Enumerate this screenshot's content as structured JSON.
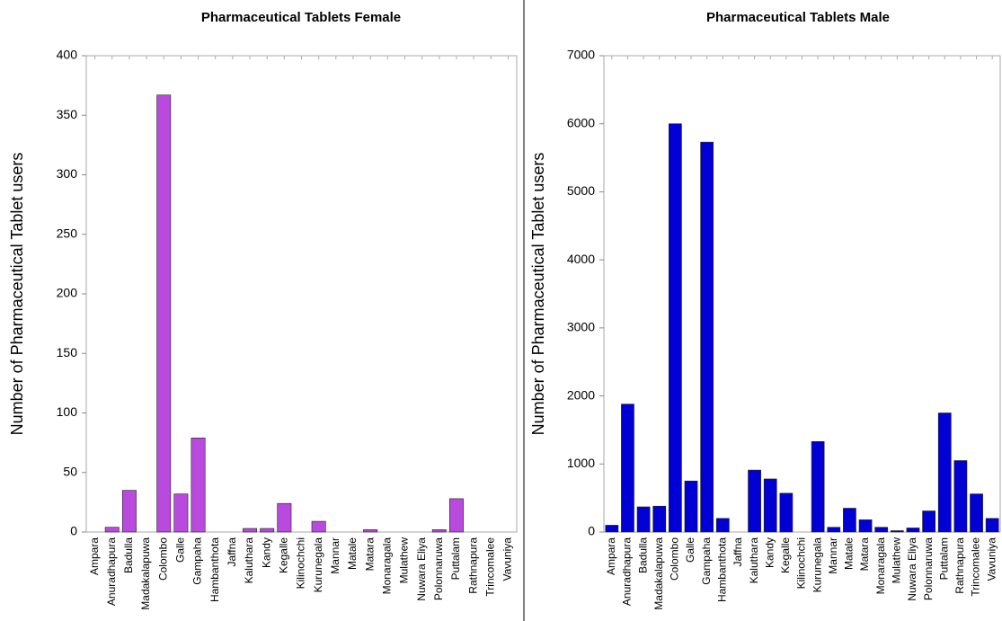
{
  "chart_data": [
    {
      "type": "bar",
      "title": "Pharmaceutical Tablets Female",
      "y_label": "Number of Pharmaceutical Tablet users",
      "categories": [
        "Ampara",
        "Anuradhapura",
        "Badulla",
        "Madakalapuwa",
        "Colombo",
        "Galle",
        "Gampaha",
        "Hambanthota",
        "Jaffna",
        "Kaluthara",
        "Kandy",
        "Kegalle",
        "Kilinochchi",
        "Kurunegala",
        "Mannar",
        "Matale",
        "Matara",
        "Monaragala",
        "Mulathew",
        "Nuwara Eliya",
        "Polonnaruwa",
        "Puttalam",
        "Rathnapura",
        "Trincomalee",
        "Vavuniya"
      ],
      "values": [
        0,
        4,
        35,
        0,
        367,
        32,
        79,
        0,
        0,
        3,
        3,
        24,
        0,
        9,
        0,
        0,
        2,
        0,
        0,
        0,
        2,
        28,
        0,
        0,
        0
      ],
      "color": "#b84ade",
      "ylim": [
        0,
        400
      ],
      "yticks": [
        0,
        50,
        100,
        150,
        200,
        250,
        300,
        350,
        400
      ]
    },
    {
      "type": "bar",
      "title": "Pharmaceutical Tablets Male",
      "y_label": "Number of Pharmaceutical Tablet users",
      "categories": [
        "Ampara",
        "Anuradhapura",
        "Badulla",
        "Madakalapuwa",
        "Colombo",
        "Galle",
        "Gampaha",
        "Hambanthota",
        "Jaffna",
        "Kaluthara",
        "Kandy",
        "Kegalle",
        "Kilinochchi",
        "Kurunegala",
        "Mannar",
        "Matale",
        "Matara",
        "Monaragala",
        "Mulathew",
        "Nuwara Eliya",
        "Polonnaruwa",
        "Puttalam",
        "Rathnapura",
        "Trincomalee",
        "Vavuniya"
      ],
      "values": [
        100,
        1880,
        370,
        380,
        6000,
        750,
        5730,
        200,
        0,
        910,
        780,
        570,
        0,
        1330,
        70,
        350,
        180,
        70,
        20,
        60,
        310,
        1750,
        1050,
        560,
        200
      ],
      "color": "#0000d4",
      "ylim": [
        0,
        7000
      ],
      "yticks": [
        0,
        1000,
        2000,
        3000,
        4000,
        5000,
        6000,
        7000
      ]
    }
  ]
}
